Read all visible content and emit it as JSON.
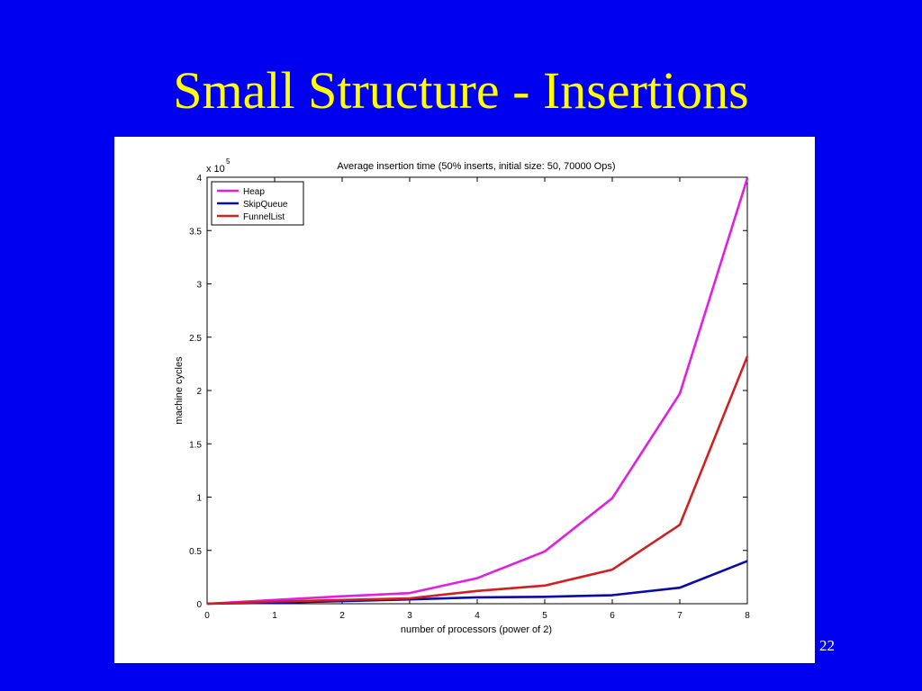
{
  "slide": {
    "title": "Small Structure - Insertions",
    "number": "22",
    "background": "#0000f0",
    "title_color": "#ffff00"
  },
  "chart_data": {
    "type": "line",
    "title": "Average insertion time (50% inserts, initial size: 50, 70000 Ops)",
    "xlabel": "number of processors (power of 2)",
    "ylabel": "machine cycles",
    "y_exponent_label": "x 10",
    "y_exponent_power": "5",
    "x": [
      0,
      1,
      2,
      3,
      4,
      5,
      6,
      7,
      8
    ],
    "xlim": [
      0,
      8
    ],
    "ylim": [
      0,
      4
    ],
    "xticks": [
      "0",
      "1",
      "2",
      "3",
      "4",
      "5",
      "6",
      "7",
      "8"
    ],
    "yticks": [
      "0",
      "0.5",
      "1",
      "1.5",
      "2",
      "2.5",
      "3",
      "3.5",
      "4"
    ],
    "grid": false,
    "legend_position": "top-left",
    "series": [
      {
        "name": "Heap",
        "color": "#e020e0",
        "values": [
          0,
          0.035,
          0.07,
          0.1,
          0.24,
          0.49,
          0.99,
          1.97,
          3.99
        ]
      },
      {
        "name": "SkipQueue",
        "color": "#0a0aa8",
        "values": [
          0,
          0.01,
          0.025,
          0.04,
          0.06,
          0.065,
          0.08,
          0.15,
          0.4
        ]
      },
      {
        "name": "FunnelList",
        "color": "#d02020",
        "values": [
          0,
          0.02,
          0.035,
          0.05,
          0.12,
          0.17,
          0.32,
          0.74,
          2.32
        ]
      }
    ]
  }
}
